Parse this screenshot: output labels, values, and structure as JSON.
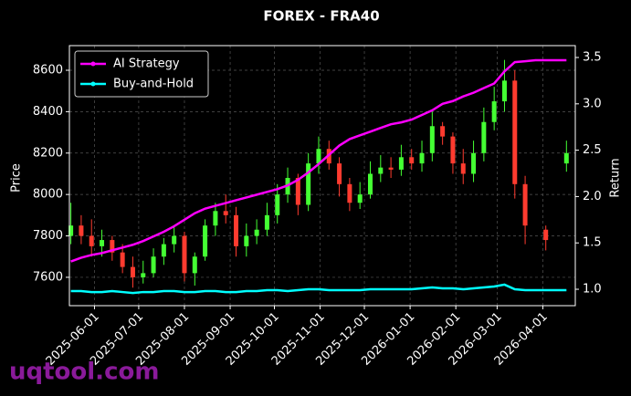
{
  "chart_data": {
    "type": "candlestick",
    "title": "FOREX - FRA40",
    "y_label": "Price",
    "y2_label": "Return",
    "watermark": "uqtool.com",
    "x": [
      "2025-05-16",
      "2025-05-23",
      "2025-05-30",
      "2025-06-06",
      "2025-06-13",
      "2025-06-20",
      "2025-06-27",
      "2025-07-04",
      "2025-07-11",
      "2025-07-18",
      "2025-07-25",
      "2025-08-01",
      "2025-08-08",
      "2025-08-15",
      "2025-08-22",
      "2025-08-29",
      "2025-09-05",
      "2025-09-12",
      "2025-09-19",
      "2025-09-26",
      "2025-10-03",
      "2025-10-10",
      "2025-10-17",
      "2025-10-24",
      "2025-10-31",
      "2025-11-07",
      "2025-11-14",
      "2025-11-21",
      "2025-11-28",
      "2025-12-05",
      "2025-12-12",
      "2025-12-19",
      "2025-12-26",
      "2026-01-02",
      "2026-01-09",
      "2026-01-16",
      "2026-01-23",
      "2026-01-30",
      "2026-02-06",
      "2026-02-13",
      "2026-02-20",
      "2026-02-27",
      "2026-03-06",
      "2026-03-13",
      "2026-03-20",
      "2026-03-27",
      "2026-04-03",
      "2026-04-10",
      "2026-04-17"
    ],
    "open": [
      7800,
      7850,
      7800,
      7750,
      7780,
      7720,
      7650,
      7600,
      7620,
      7700,
      7760,
      7800,
      7620,
      7700,
      7850,
      7920,
      7900,
      7750,
      7800,
      7830,
      7900,
      8000,
      8080,
      7950,
      8150,
      8220,
      8150,
      8050,
      7960,
      8000,
      8100,
      8130,
      8120,
      8180,
      8150,
      8200,
      8330,
      8280,
      8150,
      8100,
      8200,
      8350,
      8450,
      8550,
      8050,
      null,
      7830,
      null,
      8150
    ],
    "high": [
      7960,
      7900,
      7880,
      7830,
      7800,
      7760,
      7700,
      7680,
      7740,
      7790,
      7850,
      7820,
      7720,
      7880,
      7960,
      8000,
      7940,
      7860,
      7880,
      7960,
      8050,
      8130,
      8100,
      8200,
      8280,
      8260,
      8180,
      8080,
      8060,
      8160,
      8190,
      8180,
      8240,
      8220,
      8260,
      8400,
      8350,
      8300,
      8220,
      8260,
      8420,
      8520,
      8650,
      8600,
      8090,
      null,
      7850,
      null,
      8260
    ],
    "low": [
      7760,
      7760,
      7700,
      7700,
      7680,
      7620,
      7550,
      7570,
      7600,
      7660,
      7720,
      7580,
      7560,
      7680,
      7800,
      7860,
      7700,
      7700,
      7760,
      7800,
      7860,
      7960,
      7900,
      7920,
      8100,
      8120,
      7990,
      7920,
      7930,
      7980,
      8060,
      8080,
      8090,
      8120,
      8110,
      8160,
      8240,
      8100,
      8050,
      8060,
      8160,
      8310,
      8400,
      7980,
      7760,
      null,
      7730,
      null,
      8110
    ],
    "close": [
      7850,
      7800,
      7750,
      7780,
      7720,
      7650,
      7600,
      7620,
      7700,
      7760,
      7800,
      7620,
      7700,
      7850,
      7920,
      7900,
      7750,
      7800,
      7830,
      7900,
      8000,
      8080,
      7950,
      8150,
      8220,
      8150,
      8050,
      7960,
      8000,
      8100,
      8130,
      8120,
      8180,
      8150,
      8200,
      8330,
      8280,
      8150,
      8100,
      8200,
      8350,
      8450,
      8550,
      8050,
      7850,
      null,
      7780,
      null,
      8200
    ],
    "up_color": "#44ff33",
    "down_color": "#ff3b2f",
    "series": [
      {
        "name": "AI Strategy",
        "color": "#ff00ff",
        "axis": "y2",
        "values": [
          1.3,
          1.34,
          1.37,
          1.39,
          1.42,
          1.45,
          1.48,
          1.52,
          1.57,
          1.62,
          1.68,
          1.75,
          1.82,
          1.87,
          1.9,
          1.93,
          1.96,
          1.99,
          2.02,
          2.05,
          2.08,
          2.12,
          2.18,
          2.26,
          2.35,
          2.45,
          2.55,
          2.62,
          2.66,
          2.7,
          2.74,
          2.78,
          2.8,
          2.83,
          2.88,
          2.93,
          3.0,
          3.03,
          3.08,
          3.12,
          3.17,
          3.22,
          3.35,
          3.45,
          3.46,
          3.47,
          3.47,
          3.47,
          3.47
        ]
      },
      {
        "name": "Buy-and-Hold",
        "color": "#00ffff",
        "axis": "y2",
        "values": [
          0.98,
          0.98,
          0.97,
          0.97,
          0.98,
          0.97,
          0.96,
          0.97,
          0.97,
          0.98,
          0.98,
          0.97,
          0.97,
          0.98,
          0.98,
          0.97,
          0.97,
          0.98,
          0.98,
          0.99,
          0.99,
          0.98,
          0.99,
          1.0,
          1.0,
          0.99,
          0.99,
          0.99,
          0.99,
          1.0,
          1.0,
          1.0,
          1.0,
          1.0,
          1.01,
          1.02,
          1.01,
          1.01,
          1.0,
          1.01,
          1.02,
          1.03,
          1.05,
          1.0,
          0.99,
          0.99,
          0.99,
          0.99,
          0.99
        ]
      }
    ],
    "xlim": [
      "2025-05-15",
      "2026-04-23"
    ],
    "xticks": [
      "2025-06-01",
      "2025-07-01",
      "2025-08-01",
      "2025-09-01",
      "2025-10-01",
      "2025-11-01",
      "2025-12-01",
      "2026-01-01",
      "2026-02-01",
      "2026-03-01",
      "2026-04-01"
    ],
    "ylim": [
      7463,
      8719
    ],
    "yticks": [
      7600,
      7800,
      8000,
      8200,
      8400,
      8600
    ],
    "y2lim": [
      0.823,
      3.628
    ],
    "y2ticks": [
      {
        "value": 1,
        "label": "1.0"
      },
      1.5,
      {
        "value": 2,
        "label": "2.0"
      },
      2.5,
      {
        "value": 3,
        "label": "3.0"
      },
      3.5
    ],
    "grid": true,
    "legend": "upper left"
  }
}
